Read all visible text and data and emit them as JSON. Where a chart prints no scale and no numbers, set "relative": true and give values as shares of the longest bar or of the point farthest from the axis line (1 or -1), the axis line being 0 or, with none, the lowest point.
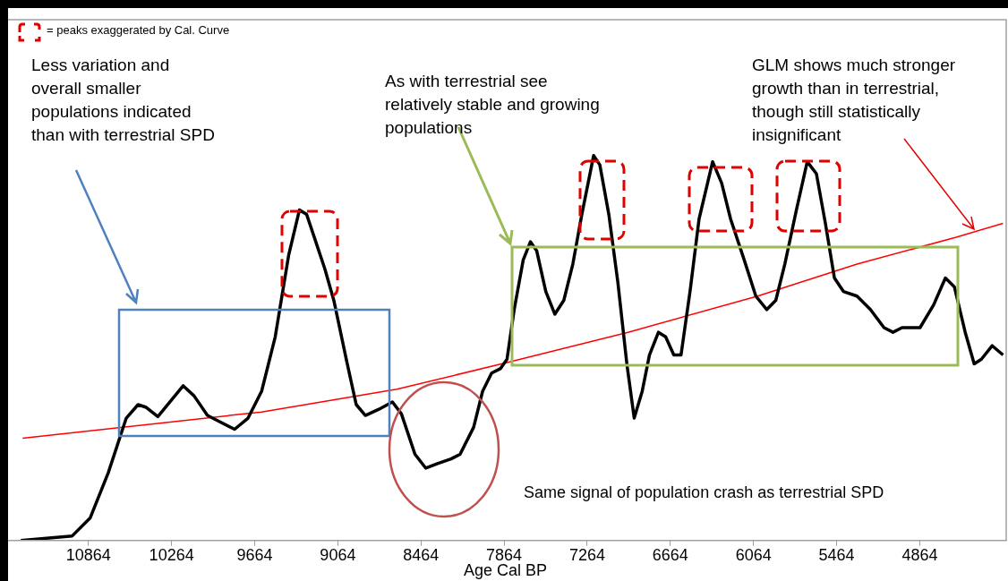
{
  "chart_data": {
    "type": "line",
    "relative": true,
    "xlabel": "Age Cal BP",
    "xlim": [
      11470,
      4240
    ],
    "xticks": [
      10864,
      10264,
      9664,
      9064,
      8464,
      7864,
      7264,
      6664,
      6064,
      5464,
      4864
    ],
    "annotations": [
      "= peaks exaggerated by Cal. Curve",
      "Less variation and\noverall smaller\npopulations indicated\nthan with terrestrial SPD",
      "As with terrestrial see\nrelatively stable and growing\npopulations",
      "GLM shows much stronger\ngrowth than in terrestrial,\nthough still statistically\ninsignificant",
      "Same signal of population crash as terrestrial SPD"
    ],
    "series": [
      {
        "color": "#000000",
        "x": [
          11352,
          10981,
          10851,
          10721,
          10591,
          10506,
          10447,
          10363,
          10265,
          10180,
          10102,
          10005,
          9940,
          9809,
          9712,
          9614,
          9516,
          9419,
          9341,
          9289,
          9223,
          9158,
          9093,
          8996,
          8931,
          8865,
          8768,
          8670,
          8605,
          8507,
          8429,
          8345,
          8247,
          8182,
          8084,
          8019,
          7954,
          7889,
          7843,
          7791,
          7726,
          7674,
          7629,
          7563,
          7498,
          7433,
          7368,
          7303,
          7218,
          7173,
          7108,
          7043,
          6978,
          6925,
          6867,
          6815,
          6750,
          6698,
          6639,
          6587,
          6522,
          6457,
          6359,
          6294,
          6229,
          6131,
          6047,
          5968,
          5903,
          5838,
          5754,
          5676,
          5610,
          5545,
          5480,
          5415,
          5317,
          5220,
          5122,
          5057,
          4992,
          4862,
          4764,
          4679,
          4614,
          4536,
          4471,
          4419,
          4341,
          4263
        ],
        "values": [
          0,
          0.012,
          0.059,
          0.176,
          0.318,
          0.353,
          0.346,
          0.322,
          0.365,
          0.402,
          0.376,
          0.325,
          0.313,
          0.289,
          0.318,
          0.388,
          0.529,
          0.741,
          0.859,
          0.847,
          0.776,
          0.706,
          0.624,
          0.459,
          0.353,
          0.325,
          0.341,
          0.36,
          0.329,
          0.224,
          0.188,
          0.2,
          0.212,
          0.224,
          0.294,
          0.388,
          0.435,
          0.447,
          0.471,
          0.6,
          0.729,
          0.776,
          0.753,
          0.647,
          0.588,
          0.624,
          0.718,
          0.847,
          1,
          0.976,
          0.847,
          0.671,
          0.459,
          0.318,
          0.388,
          0.482,
          0.541,
          0.529,
          0.482,
          0.482,
          0.647,
          0.835,
          0.984,
          0.929,
          0.835,
          0.729,
          0.635,
          0.6,
          0.624,
          0.718,
          0.859,
          0.984,
          0.953,
          0.824,
          0.682,
          0.647,
          0.635,
          0.6,
          0.553,
          0.541,
          0.553,
          0.553,
          0.612,
          0.682,
          0.659,
          0.541,
          0.459,
          0.471,
          0.506,
          0.482
        ]
      },
      {
        "color": "#ff0000",
        "x": [
          11339,
          9614,
          8638,
          7824,
          6970,
          6034,
          5317,
          4601,
          4263
        ],
        "values": [
          0.266,
          0.334,
          0.393,
          0.464,
          0.541,
          0.635,
          0.718,
          0.788,
          0.824
        ]
      }
    ]
  }
}
